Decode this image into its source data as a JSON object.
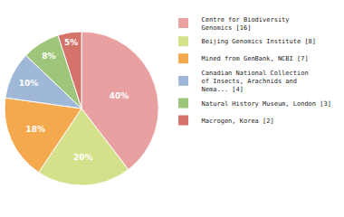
{
  "chart_data": {
    "type": "pie",
    "categories": [
      "Centre for Biodiversity\nGenomics [16]",
      "Beijing Genomics Institute [8]",
      "Mined from GenBank, NCBI [7]",
      "Canadian National Collection\nof Insects, Arachnids and\nNema... [4]",
      "Natural History Museum, London [3]",
      "Macrogen, Korea [2]"
    ],
    "values": [
      40,
      20,
      18,
      10,
      8,
      5
    ],
    "value_labels": [
      "40%",
      "20%",
      "18%",
      "10%",
      "8%",
      "5%"
    ],
    "colors": [
      "#e8a0a0",
      "#d4e08a",
      "#f5a94e",
      "#a0b8d8",
      "#9dc67a",
      "#d4736a"
    ],
    "data_labels": true,
    "legend": "upper right"
  }
}
